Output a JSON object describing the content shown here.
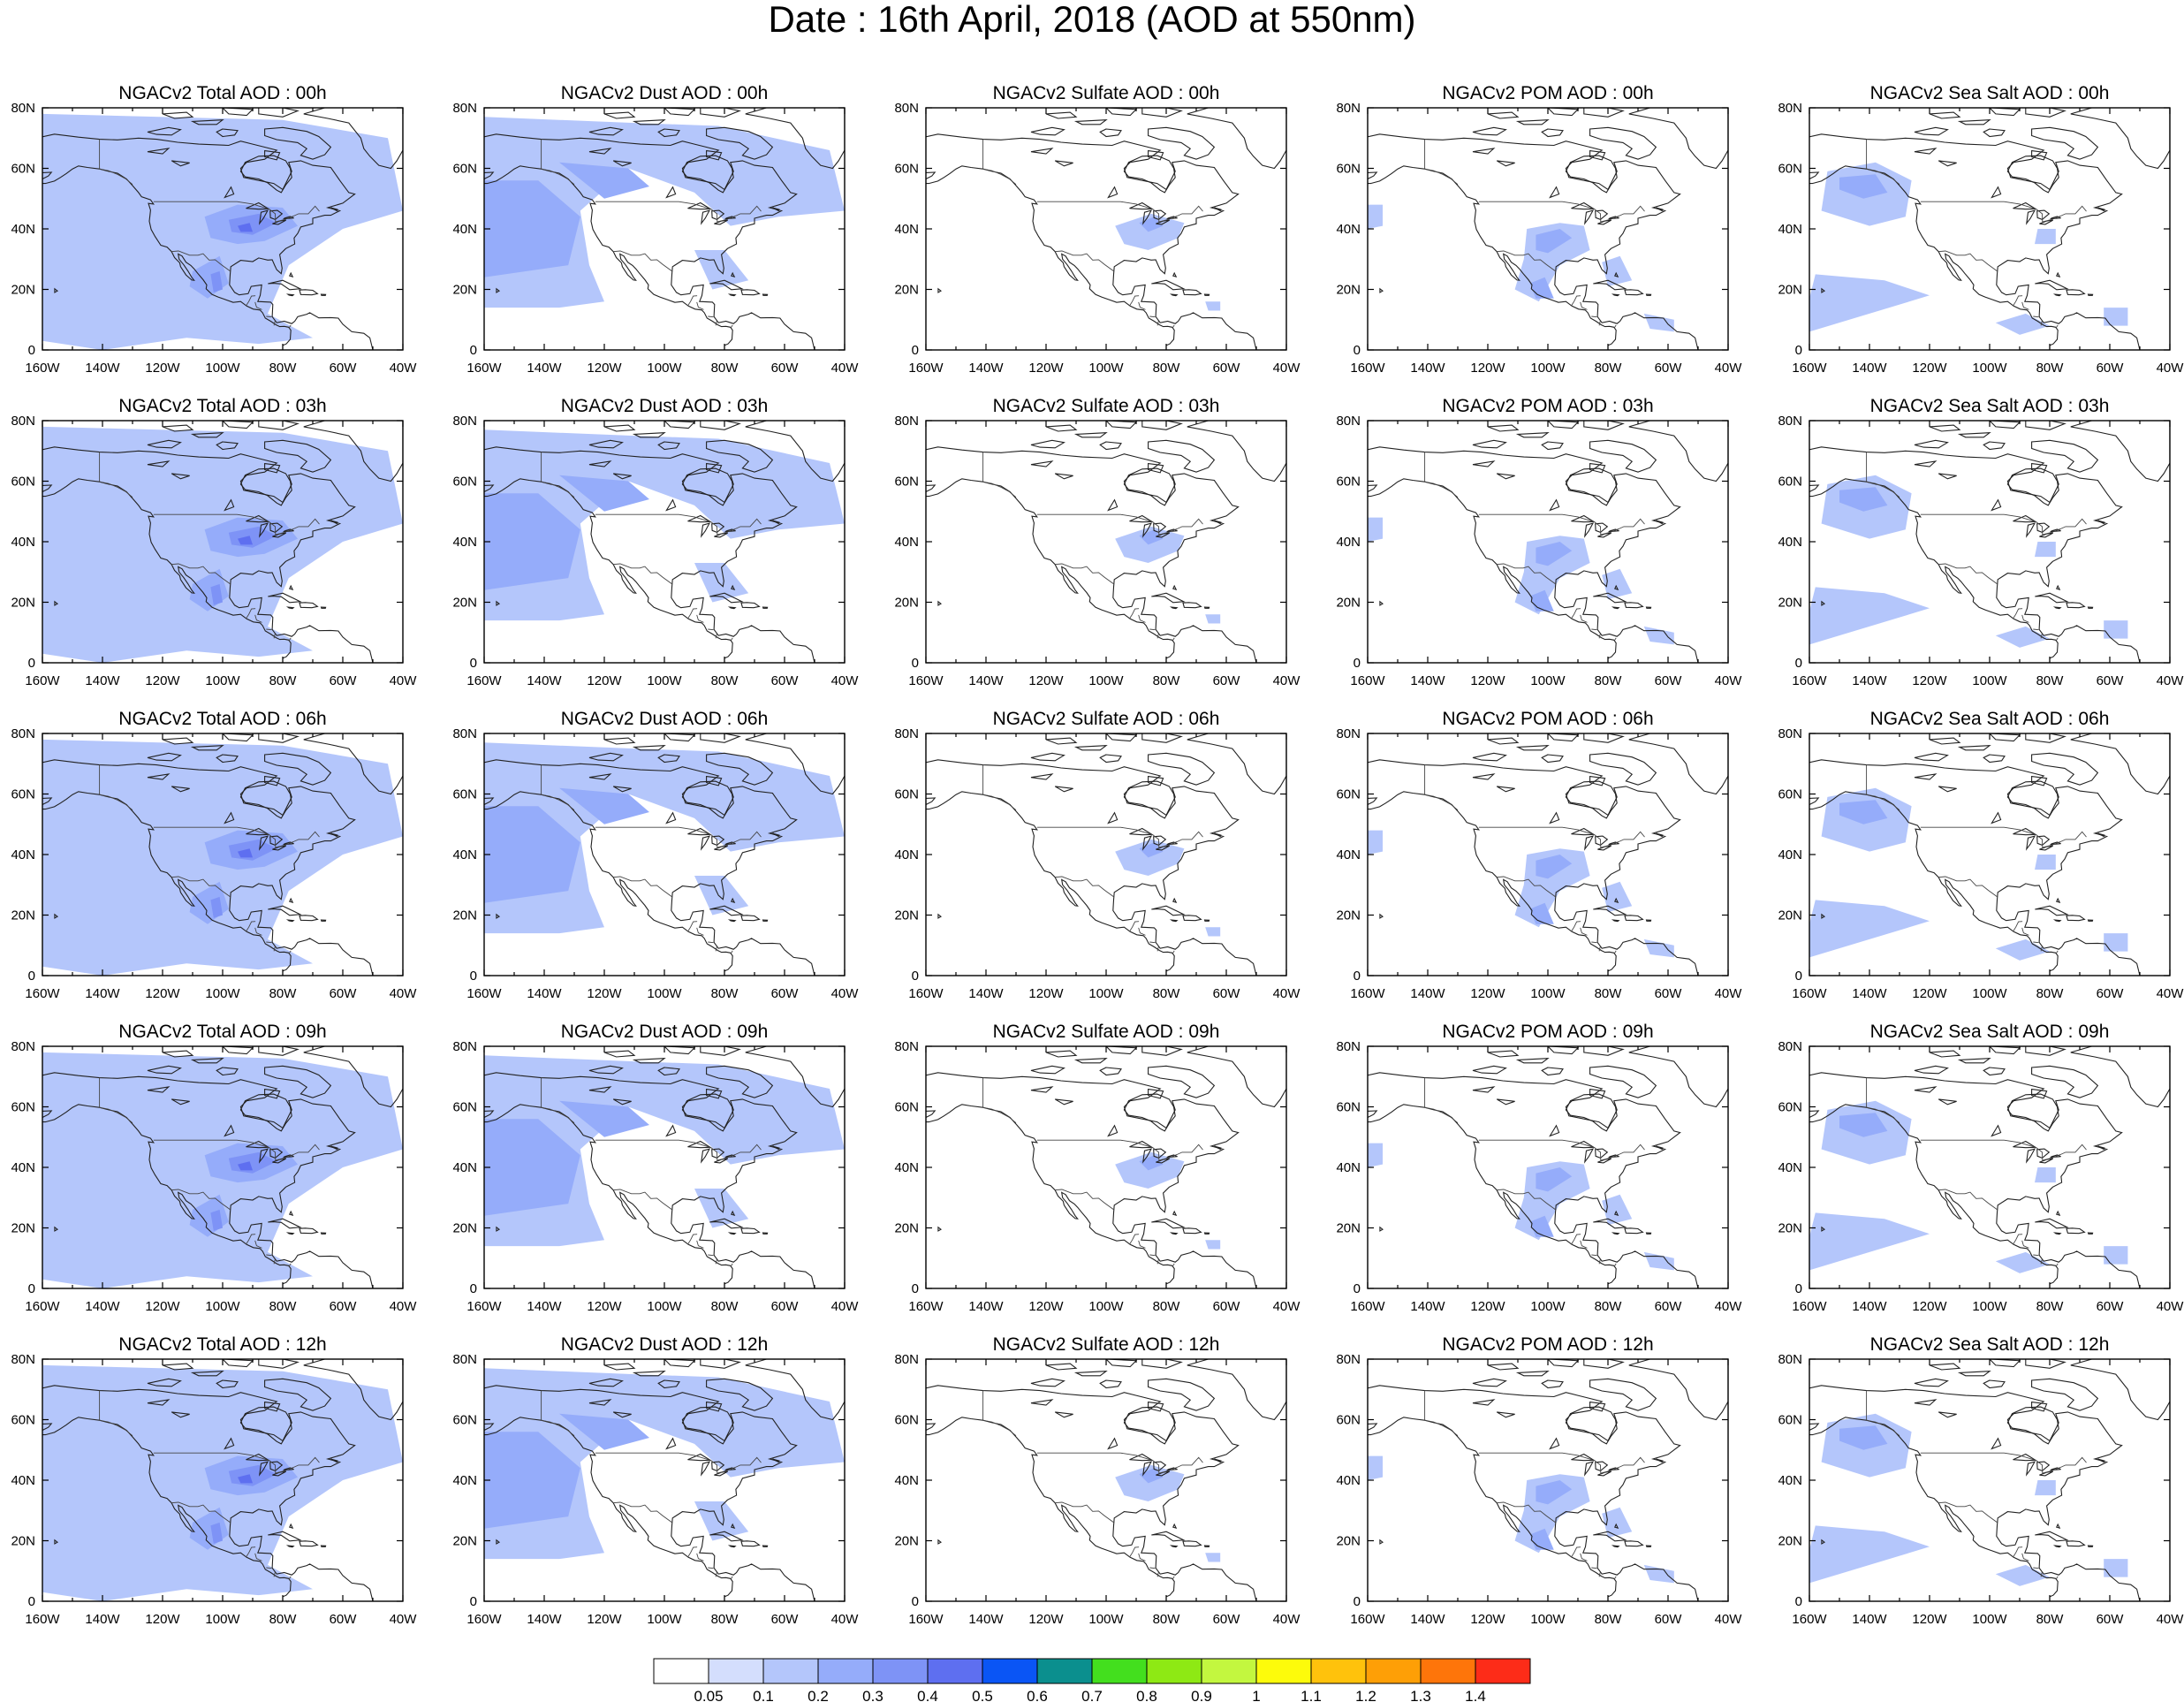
{
  "title": "Date : 16th April, 2018 (AOD at 550nm)",
  "axes": {
    "x_ticks": [
      "160W",
      "140W",
      "120W",
      "100W",
      "80W",
      "60W",
      "40W"
    ],
    "y_ticks": [
      "80N",
      "60N",
      "40N",
      "20N",
      "0"
    ],
    "lon_range": [
      -160,
      -40
    ],
    "lat_range": [
      0,
      80
    ]
  },
  "panels": [
    [
      "NGACv2 Total AOD : 00h",
      "NGACv2 Dust AOD : 00h",
      "NGACv2 Sulfate AOD : 00h",
      "NGACv2 POM AOD : 00h",
      "NGACv2 Sea Salt AOD : 00h"
    ],
    [
      "NGACv2 Total AOD : 03h",
      "NGACv2 Dust AOD : 03h",
      "NGACv2 Sulfate AOD : 03h",
      "NGACv2 POM AOD : 03h",
      "NGACv2 Sea Salt AOD : 03h"
    ],
    [
      "NGACv2 Total AOD : 06h",
      "NGACv2 Dust AOD : 06h",
      "NGACv2 Sulfate AOD : 06h",
      "NGACv2 POM AOD : 06h",
      "NGACv2 Sea Salt AOD : 06h"
    ],
    [
      "NGACv2 Total AOD : 09h",
      "NGACv2 Dust AOD : 09h",
      "NGACv2 Sulfate AOD : 09h",
      "NGACv2 POM AOD : 09h",
      "NGACv2 Sea Salt  AOD : 09h"
    ],
    [
      "NGACv2 Total AOD  : 12h",
      "NGACv2 Dust AOD : 12h",
      "NGACv2 Sulfate AOD : 12h",
      "NGACv2 POM  AOD : 12h",
      "NGACv2 Sea Salt  AOD : 12h"
    ]
  ],
  "colorbar": {
    "labels": [
      "0.05",
      "0.1",
      "0.2",
      "0.3",
      "0.4",
      "0.5",
      "0.6",
      "0.7",
      "0.8",
      "0.9",
      "1",
      "1.1",
      "1.2",
      "1.3",
      "1.4"
    ],
    "colors": [
      "#ffffff",
      "#d4defd",
      "#b4c6fb",
      "#95acfa",
      "#7e93f6",
      "#5e6ff0",
      "#0a55f5",
      "#0b8f8e",
      "#43df1e",
      "#8ee914",
      "#c3f73f",
      "#fdfb0b",
      "#ffc20c",
      "#fe9f06",
      "#fe750a",
      "#fd2c18"
    ]
  },
  "legend": {
    "aod_colors": [
      "#d4defd",
      "#b4c6fb",
      "#95acfa",
      "#7e93f6",
      "#5e6ff0"
    ]
  }
}
